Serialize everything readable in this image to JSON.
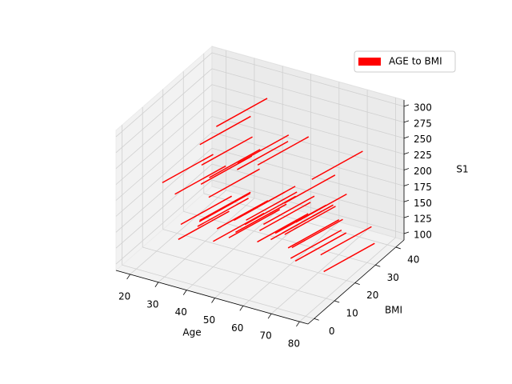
{
  "chart_data": {
    "type": "quiver3d",
    "xlabel": "Age",
    "ylabel": "BMI",
    "zlabel": "S1",
    "xlim": [
      15,
      83
    ],
    "ylim": [
      -3,
      44
    ],
    "zlim": [
      90,
      310
    ],
    "xticks": [
      20,
      30,
      40,
      50,
      60,
      70,
      80
    ],
    "yticks": [
      0,
      10,
      20,
      30,
      40
    ],
    "zticks": [
      100,
      125,
      150,
      175,
      200,
      225,
      250,
      275,
      300
    ],
    "grid": true,
    "legend": "upper right",
    "series": [
      {
        "name": "AGE to BMI",
        "color": "#ff0000",
        "x": [
          25,
          30,
          35,
          40,
          45,
          50,
          55,
          60,
          65,
          70,
          28,
          33,
          38,
          43,
          48,
          53,
          58,
          63,
          68,
          73,
          22,
          27,
          32,
          37,
          42,
          47,
          52,
          57,
          62,
          67,
          72,
          77,
          31,
          41,
          51,
          61,
          36,
          46,
          56,
          66
        ],
        "y": [
          12,
          8,
          15,
          10,
          5,
          18,
          12,
          7,
          14,
          9,
          20,
          14,
          6,
          16,
          11,
          3,
          19,
          13,
          8,
          17,
          10,
          22,
          4,
          12,
          19,
          8,
          15,
          2,
          10,
          21,
          6,
          13,
          24,
          1,
          23,
          16,
          9,
          17,
          4,
          12
        ],
        "z": [
          180,
          150,
          210,
          130,
          170,
          240,
          160,
          190,
          140,
          200,
          120,
          230,
          170,
          150,
          260,
          180,
          140,
          210,
          160,
          130,
          200,
          170,
          140,
          190,
          220,
          150,
          130,
          200,
          170,
          230,
          150,
          120,
          260,
          180,
          110,
          150,
          280,
          160,
          200,
          130
        ],
        "u": 5,
        "v": 18,
        "w": 0
      }
    ]
  }
}
